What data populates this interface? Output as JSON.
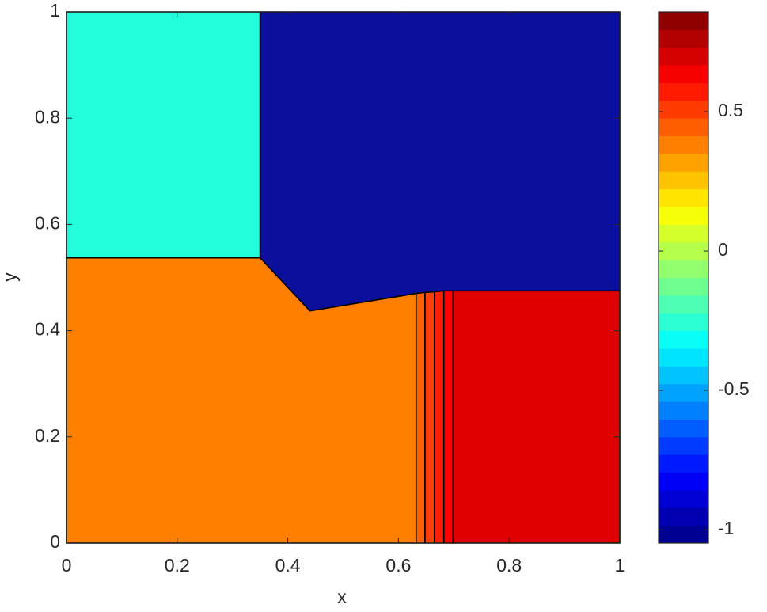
{
  "chart_data": {
    "type": "contourf",
    "x_label": "x",
    "y_label": "y",
    "xlim": [
      0,
      1
    ],
    "ylim": [
      0,
      1
    ],
    "xticks": [
      0,
      0.2,
      0.4,
      0.6,
      0.8,
      1
    ],
    "yticks": [
      0,
      0.2,
      0.4,
      0.6,
      0.8,
      1
    ],
    "colormap": "jet",
    "clim": [
      -1.048,
      0.858
    ],
    "color_levels": 30,
    "cticks": [
      -1,
      -0.5,
      0,
      0.5
    ],
    "regions": [
      {
        "value": -0.3,
        "color": "#22ffdd",
        "boundary": [
          [
            0,
            0.537
          ],
          [
            0.35,
            0.537
          ],
          [
            0.35,
            1
          ],
          [
            0,
            1
          ]
        ]
      },
      {
        "value": -1,
        "color": "#0a0f9c",
        "boundary": [
          [
            0.35,
            1
          ],
          [
            1,
            1
          ],
          [
            1,
            0.475
          ],
          [
            0.698,
            0.475
          ],
          [
            0.665,
            0.473
          ],
          [
            0.632,
            0.47
          ],
          [
            0.44,
            0.437
          ],
          [
            0.35,
            0.537
          ]
        ]
      },
      {
        "value": 0.5,
        "color": "#ff8000",
        "boundary": [
          [
            0,
            0
          ],
          [
            0.632,
            0
          ],
          [
            0.632,
            0.47
          ],
          [
            0.44,
            0.437
          ],
          [
            0.35,
            0.537
          ],
          [
            0,
            0.537
          ]
        ]
      },
      {
        "value": 0.58,
        "color": "#ff6000",
        "boundary": [
          [
            0.632,
            0
          ],
          [
            0.648,
            0
          ],
          [
            0.648,
            0.472
          ],
          [
            0.632,
            0.47
          ]
        ]
      },
      {
        "value": 0.65,
        "color": "#ff4000",
        "boundary": [
          [
            0.648,
            0
          ],
          [
            0.665,
            0
          ],
          [
            0.665,
            0.473
          ],
          [
            0.648,
            0.472
          ]
        ]
      },
      {
        "value": 0.72,
        "color": "#ff2000",
        "boundary": [
          [
            0.665,
            0
          ],
          [
            0.682,
            0
          ],
          [
            0.682,
            0.475
          ],
          [
            0.665,
            0.473
          ]
        ]
      },
      {
        "value": 0.78,
        "color": "#ff0000",
        "boundary": [
          [
            0.682,
            0
          ],
          [
            0.698,
            0
          ],
          [
            0.698,
            0.475
          ],
          [
            0.682,
            0.475
          ]
        ]
      },
      {
        "value": 0.82,
        "color": "#e00000",
        "boundary": [
          [
            0.698,
            0
          ],
          [
            1,
            0
          ],
          [
            1,
            0.475
          ],
          [
            0.698,
            0.475
          ]
        ]
      }
    ]
  }
}
